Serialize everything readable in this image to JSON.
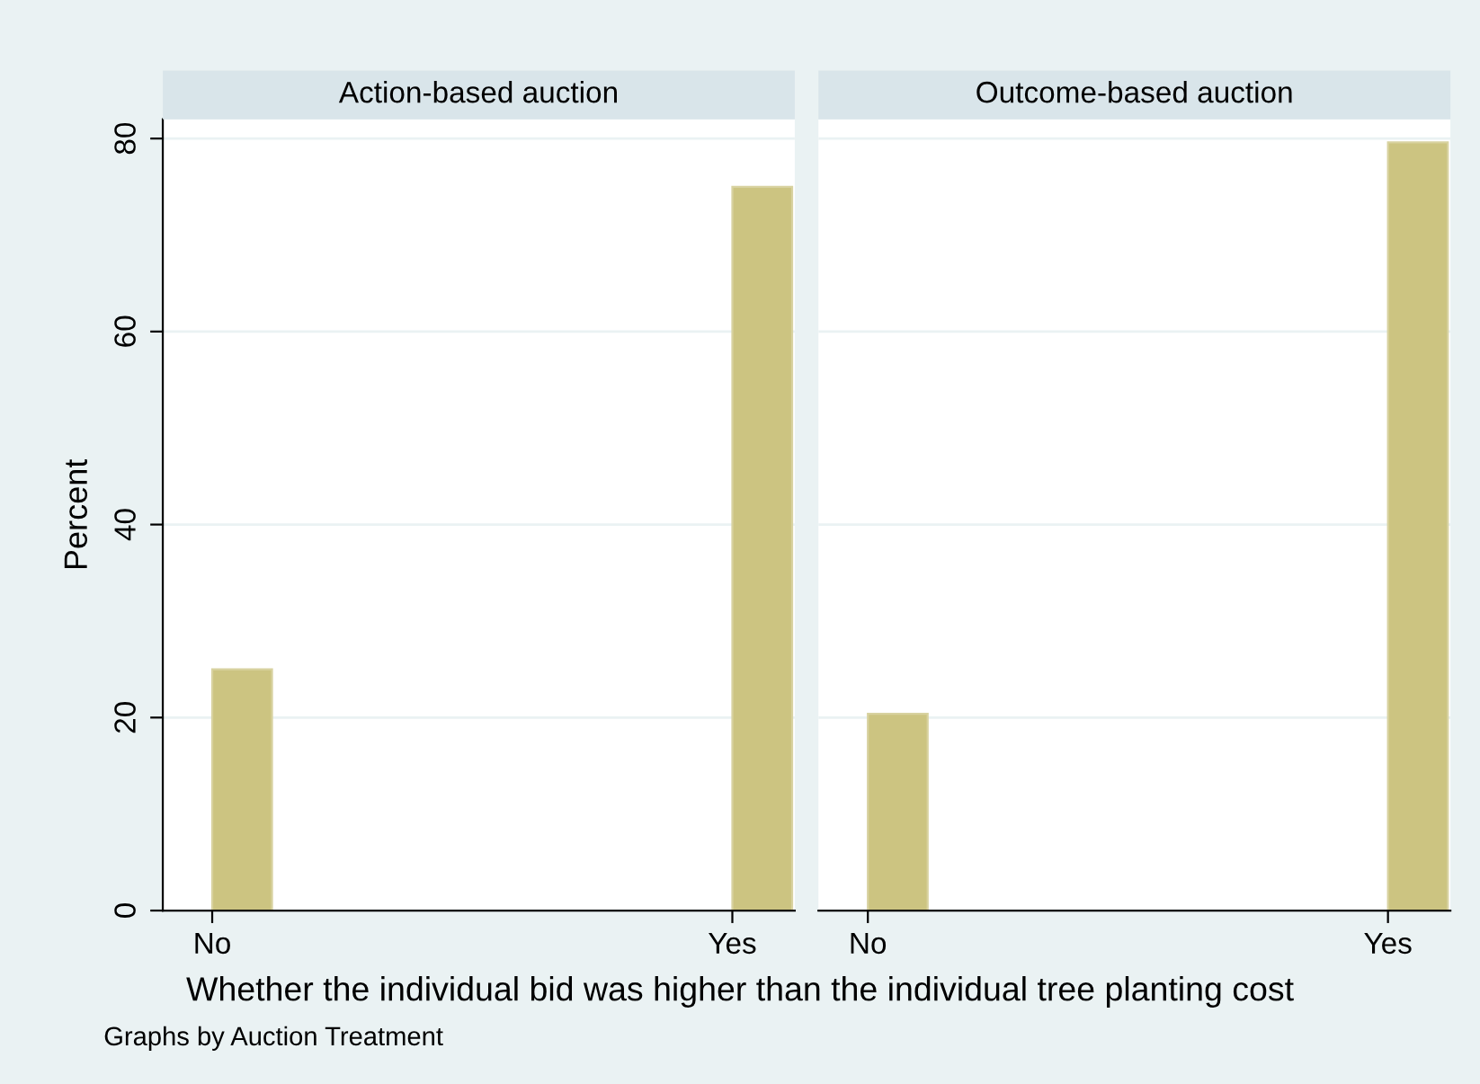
{
  "chart_data": [
    {
      "type": "bar",
      "title": "Action-based auction",
      "ylabel": "Percent",
      "xlabel": "Whether the individual bid was higher than the individual tree planting cost",
      "annotations": [
        "Graphs by Auction Treatment"
      ],
      "categories": [
        "No",
        "Yes"
      ],
      "values": [
        25,
        75
      ],
      "color": "#ccc481",
      "ylim": [
        0,
        82
      ],
      "yticks": [
        0,
        20,
        40,
        60,
        80
      ],
      "grid": "y"
    },
    {
      "type": "bar",
      "title": "Outcome-based auction",
      "categories": [
        "No",
        "Yes"
      ],
      "values": [
        20.4,
        79.6
      ],
      "color": "#ccc481",
      "ylim": [
        0,
        82
      ],
      "yticks": [
        0,
        20,
        40,
        60,
        80
      ],
      "grid": "y",
      "tick_labels": "x"
    }
  ]
}
